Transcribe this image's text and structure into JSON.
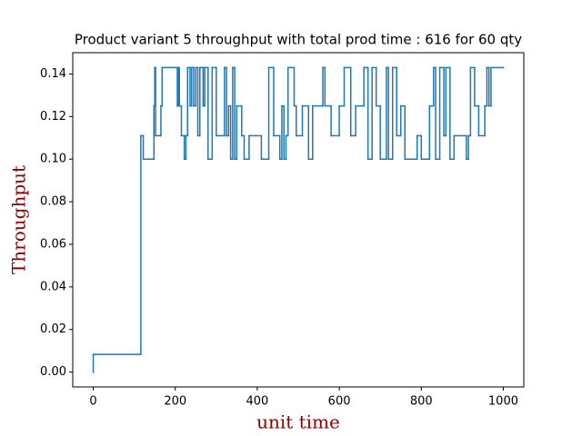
{
  "chart_data": {
    "type": "line",
    "drawstyle": "steps-post",
    "title": "Product variant 5 throughput with total prod time : 616 for 60 qty",
    "xlabel": "unit time",
    "ylabel": "Throughput",
    "color": "#1f77b4",
    "label_color": "#8b0000",
    "xlim": [
      -50,
      1050
    ],
    "ylim": [
      -0.007,
      0.15
    ],
    "xticks": [
      0,
      200,
      400,
      600,
      800,
      1000
    ],
    "yticks": [
      {
        "value": 0,
        "label": "0.00"
      },
      {
        "value": 0.02,
        "label": "0.02"
      },
      {
        "value": 0.04,
        "label": "0.04"
      },
      {
        "value": 0.06,
        "label": "0.06"
      },
      {
        "value": 0.08,
        "label": "0.08"
      },
      {
        "value": 0.1,
        "label": "0.10"
      },
      {
        "value": 0.12,
        "label": "0.12"
      },
      {
        "value": 0.14,
        "label": "0.14"
      }
    ],
    "x": [
      0,
      0,
      116,
      122,
      148,
      150,
      152,
      165,
      168,
      205,
      208,
      210,
      215,
      222,
      226,
      230,
      236,
      240,
      245,
      250,
      255,
      260,
      268,
      272,
      280,
      290,
      300,
      320,
      325,
      330,
      335,
      340,
      345,
      350,
      362,
      368,
      380,
      410,
      428,
      440,
      455,
      460,
      465,
      470,
      475,
      490,
      495,
      510,
      525,
      535,
      560,
      565,
      580,
      600,
      612,
      628,
      640,
      660,
      670,
      680,
      690,
      700,
      715,
      720,
      730,
      740,
      750,
      760,
      790,
      800,
      820,
      830,
      835,
      845,
      855,
      860,
      870,
      880,
      910,
      915,
      920,
      930,
      940,
      955,
      960,
      965,
      970,
      1000
    ],
    "values": [
      0,
      0.0083,
      0.111,
      0.1,
      0.125,
      0.143,
      0.111,
      0.125,
      0.143,
      0.125,
      0.143,
      0.125,
      0.111,
      0.1,
      0.111,
      0.143,
      0.125,
      0.143,
      0.125,
      0.143,
      0.111,
      0.143,
      0.125,
      0.143,
      0.1,
      0.143,
      0.111,
      0.143,
      0.111,
      0.125,
      0.1,
      0.143,
      0.1,
      0.125,
      0.111,
      0.1,
      0.111,
      0.1,
      0.143,
      0.111,
      0.1,
      0.125,
      0.1,
      0.111,
      0.143,
      0.125,
      0.111,
      0.125,
      0.1,
      0.125,
      0.143,
      0.125,
      0.111,
      0.125,
      0.143,
      0.111,
      0.125,
      0.143,
      0.1,
      0.143,
      0.125,
      0.1,
      0.143,
      0.1,
      0.143,
      0.111,
      0.125,
      0.1,
      0.111,
      0.1,
      0.125,
      0.143,
      0.1,
      0.143,
      0.111,
      0.143,
      0.1,
      0.111,
      0.1,
      0.111,
      0.143,
      0.125,
      0.111,
      0.125,
      0.143,
      0.125,
      0.143,
      0.143
    ]
  }
}
